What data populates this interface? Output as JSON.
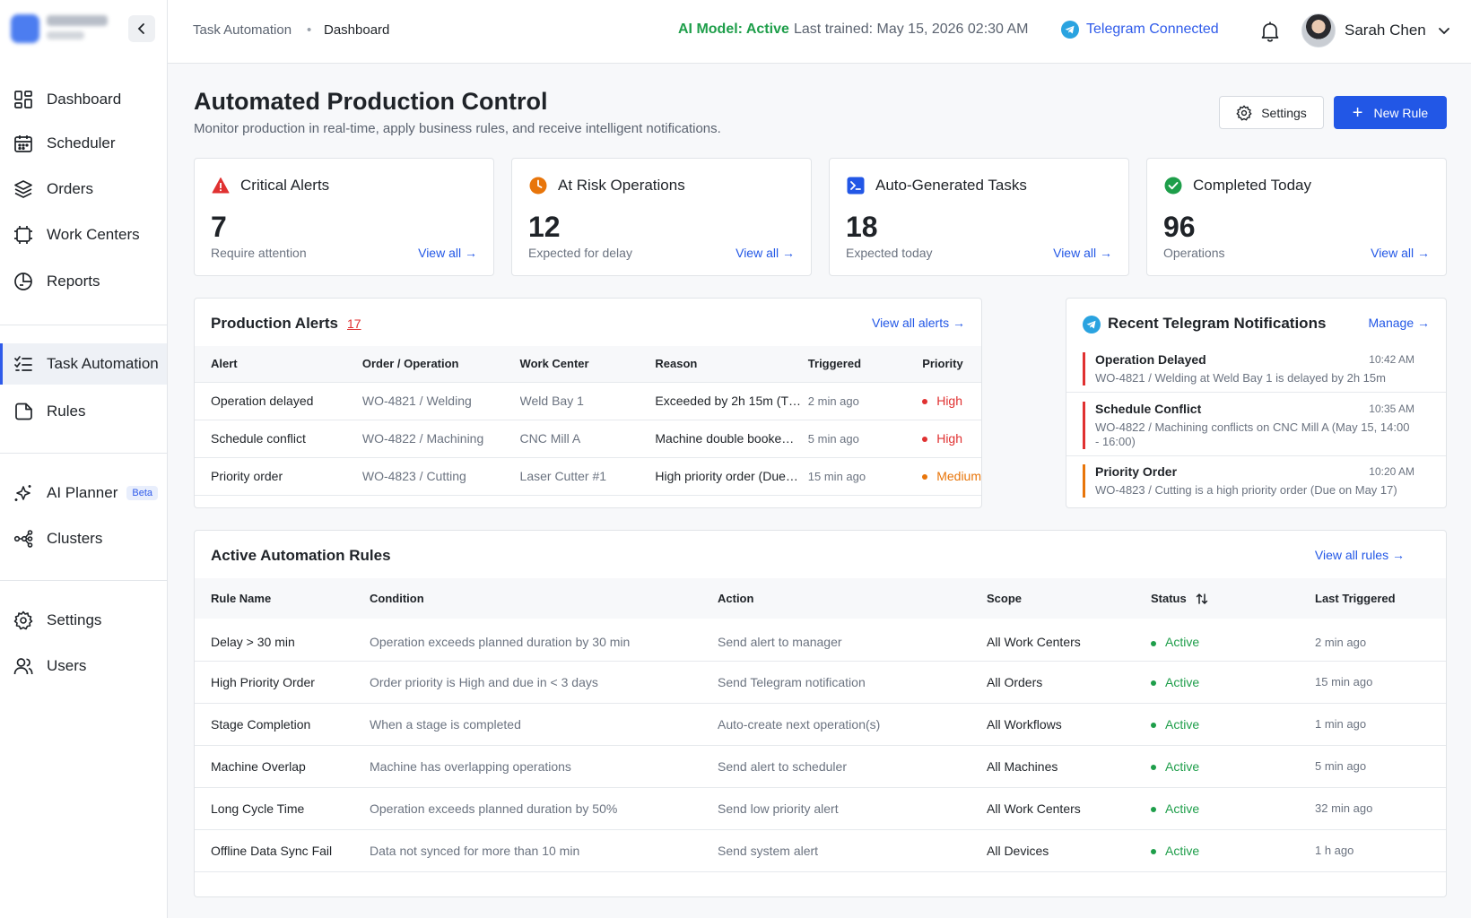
{
  "sidebar": {
    "items": [
      {
        "label": "Dashboard",
        "icon": "dashboard-icon"
      },
      {
        "label": "Scheduler",
        "icon": "calendar-icon"
      },
      {
        "label": "Orders",
        "icon": "layers-icon"
      },
      {
        "label": "Work Centers",
        "icon": "work-centers-icon"
      },
      {
        "label": "Reports",
        "icon": "reports-icon"
      },
      {
        "label": "Task Automation",
        "icon": "task-list-icon",
        "active": true
      },
      {
        "label": "Rules",
        "icon": "rules-icon"
      },
      {
        "label": "AI Planner",
        "icon": "sparkle-icon",
        "badge": "Beta"
      },
      {
        "label": "Clusters",
        "icon": "clusters-icon"
      },
      {
        "label": "Settings",
        "icon": "gear-icon"
      },
      {
        "label": "Users",
        "icon": "users-icon"
      }
    ]
  },
  "topbar": {
    "breadcrumb": [
      "Task Automation",
      "Dashboard"
    ],
    "ai_status": "AI Model: Active",
    "last_trained": "Last trained: May 15, 2026 02:30 AM",
    "telegram": "Telegram Connected",
    "user_name": "Sarah Chen"
  },
  "header": {
    "title": "Automated Production Control",
    "subtitle": "Monitor production in real-time, apply business rules, and receive intelligent notifications.",
    "settings_label": "Settings",
    "new_rule_label": "New Rule"
  },
  "stats": [
    {
      "title": "Critical Alerts",
      "value": "7",
      "sub": "Require attention",
      "link": "View all",
      "color": "#e03131"
    },
    {
      "title": "At Risk Operations",
      "value": "12",
      "sub": "Expected for delay",
      "link": "View all",
      "color": "#e8750a"
    },
    {
      "title": "Auto-Generated Tasks",
      "value": "18",
      "sub": "Expected today",
      "link": "View all",
      "color": "#2257e6"
    },
    {
      "title": "Completed Today",
      "value": "96",
      "sub": "Operations",
      "link": "View all",
      "color": "#1e9e4a"
    }
  ],
  "alerts": {
    "title": "Production Alerts",
    "count": "17",
    "link": "View all alerts",
    "columns": [
      "Alert",
      "Order / Operation",
      "Work Center",
      "Reason",
      "Triggered",
      "Priority"
    ],
    "rows": [
      {
        "alert": "Operation delayed",
        "order": "WO-4821 / Welding",
        "wc": "Weld Bay 1",
        "reason": "Exceeded by 2h 15m (T…",
        "triggered": "2 min ago",
        "priority": "High"
      },
      {
        "alert": "Schedule conflict",
        "order": "WO-4822 / Machining",
        "wc": "CNC Mill A",
        "reason": "Machine double booke…",
        "triggered": "5 min ago",
        "priority": "High"
      },
      {
        "alert": "Priority order",
        "order": "WO-4823 / Cutting",
        "wc": "Laser Cutter #1",
        "reason": "High priority order (Due…",
        "triggered": "15 min ago",
        "priority": "Medium"
      }
    ]
  },
  "telegram": {
    "title": "Recent Telegram Notifications",
    "link": "Manage",
    "items": [
      {
        "title": "Operation Delayed",
        "time": "10:42 AM",
        "body": "WO-4821 / Welding at Weld Bay 1 is delayed by 2h 15m",
        "color": "#e03131"
      },
      {
        "title": "Schedule Conflict",
        "time": "10:35 AM",
        "body": "WO-4822 / Machining conflicts on CNC Mill A (May 15, 14:00 - 16:00)",
        "color": "#e03131"
      },
      {
        "title": "Priority Order",
        "time": "10:20 AM",
        "body": "WO-4823 / Cutting is a high priority order (Due on May 17)",
        "color": "#e8750a"
      }
    ]
  },
  "rules": {
    "title": "Active Automation Rules",
    "link": "View all rules",
    "columns": [
      "Rule Name",
      "Condition",
      "Action",
      "Scope",
      "Status",
      "Last Triggered"
    ],
    "rows": [
      {
        "name": "Delay > 30 min",
        "condition": "Operation exceeds planned duration by 30 min",
        "action": "Send alert to manager",
        "scope": "All Work Centers",
        "status": "Active",
        "last": "2 min ago"
      },
      {
        "name": "High Priority Order",
        "condition": "Order priority is High and due in < 3 days",
        "action": "Send Telegram notification",
        "scope": "All Orders",
        "status": "Active",
        "last": "15 min ago"
      },
      {
        "name": "Stage Completion",
        "condition": "When a stage is completed",
        "action": "Auto-create next operation(s)",
        "scope": "All Workflows",
        "status": "Active",
        "last": "1 min ago"
      },
      {
        "name": "Machine Overlap",
        "condition": "Machine has overlapping operations",
        "action": "Send alert to scheduler",
        "scope": "All Machines",
        "status": "Active",
        "last": "5 min ago"
      },
      {
        "name": "Long Cycle Time",
        "condition": "Operation exceeds planned duration by 50%",
        "action": "Send low priority alert",
        "scope": "All Work Centers",
        "status": "Active",
        "last": "32 min ago"
      },
      {
        "name": "Offline Data Sync Fail",
        "condition": "Data not synced for more than 10 min",
        "action": "Send system alert",
        "scope": "All Devices",
        "status": "Active",
        "last": "1 h ago"
      }
    ]
  }
}
